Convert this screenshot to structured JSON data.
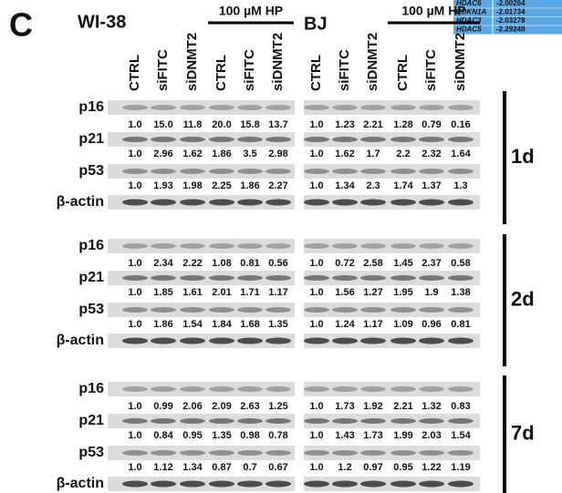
{
  "panel_label": "C",
  "side_table": {
    "rows": [
      [
        "HDAC6",
        "-2.00264"
      ],
      [
        "CDKN1A",
        "-2.01734"
      ],
      [
        "HDAC3",
        "-2.03278"
      ],
      [
        "HDAC5",
        "-2.29248"
      ]
    ]
  },
  "blots": [
    {
      "cell_line": "WI-38",
      "treatment": "100 µM HP",
      "lanes": [
        "CTRL",
        "siFITC",
        "siDNMT2",
        "CTRL",
        "siFITC",
        "siDNMT2"
      ]
    },
    {
      "cell_line": "BJ",
      "treatment": "100 µM HP",
      "lanes": [
        "CTRL",
        "siFITC",
        "siDNMT2",
        "CTRL",
        "siFITC",
        "siDNMT2"
      ]
    }
  ],
  "timepoints": [
    {
      "label": "1d",
      "rows": [
        {
          "protein": "p16",
          "values": [
            [
              "1.0",
              "15.0",
              "11.8",
              "20.0",
              "15.8",
              "13.7"
            ],
            [
              "1.0",
              "1.23",
              "2.21",
              "1.28",
              "0.79",
              "0.16"
            ]
          ]
        },
        {
          "protein": "p21",
          "values": [
            [
              "1.0",
              "2.96",
              "1.62",
              "1.86",
              "3.5",
              "2.98"
            ],
            [
              "1.0",
              "1.62",
              "1.7",
              "2.2",
              "2.32",
              "1.64"
            ]
          ]
        },
        {
          "protein": "p53",
          "values": [
            [
              "1.0",
              "1.93",
              "1.98",
              "2.25",
              "1.86",
              "2.27"
            ],
            [
              "1.0",
              "1.34",
              "2.3",
              "1.74",
              "1.37",
              "1.3"
            ]
          ]
        },
        {
          "protein": "β-actin"
        }
      ]
    },
    {
      "label": "2d",
      "rows": [
        {
          "protein": "p16",
          "values": [
            [
              "1.0",
              "2.34",
              "2.22",
              "1.08",
              "0.81",
              "0.56"
            ],
            [
              "1.0",
              "0.72",
              "2.58",
              "1.45",
              "2.37",
              "0.58"
            ]
          ]
        },
        {
          "protein": "p21",
          "values": [
            [
              "1.0",
              "1.85",
              "1.61",
              "2.01",
              "1.71",
              "1.17"
            ],
            [
              "1.0",
              "1.56",
              "1.27",
              "1.95",
              "1.9",
              "1.38"
            ]
          ]
        },
        {
          "protein": "p53",
          "values": [
            [
              "1.0",
              "1.86",
              "1.54",
              "1.84",
              "1.68",
              "1.35"
            ],
            [
              "1.0",
              "1.24",
              "1.17",
              "1.09",
              "0.96",
              "0.81"
            ]
          ]
        },
        {
          "protein": "β-actin"
        }
      ]
    },
    {
      "label": "7d",
      "rows": [
        {
          "protein": "p16",
          "values": [
            [
              "1.0",
              "0.99",
              "2.06",
              "2.09",
              "2.63",
              "1.25"
            ],
            [
              "1.0",
              "1.73",
              "1.92",
              "2.21",
              "1.32",
              "0.83"
            ]
          ]
        },
        {
          "protein": "p21",
          "values": [
            [
              "1.0",
              "0.84",
              "0.95",
              "1.35",
              "0.98",
              "0.78"
            ],
            [
              "1.0",
              "1.43",
              "1.73",
              "1.99",
              "2.03",
              "1.54"
            ]
          ]
        },
        {
          "protein": "p53",
          "values": [
            [
              "1.0",
              "1.12",
              "1.34",
              "0.87",
              "0.7",
              "0.67"
            ],
            [
              "1.0",
              "1.2",
              "0.97",
              "0.95",
              "1.22",
              "1.19"
            ]
          ]
        },
        {
          "protein": "β-actin"
        }
      ]
    }
  ]
}
